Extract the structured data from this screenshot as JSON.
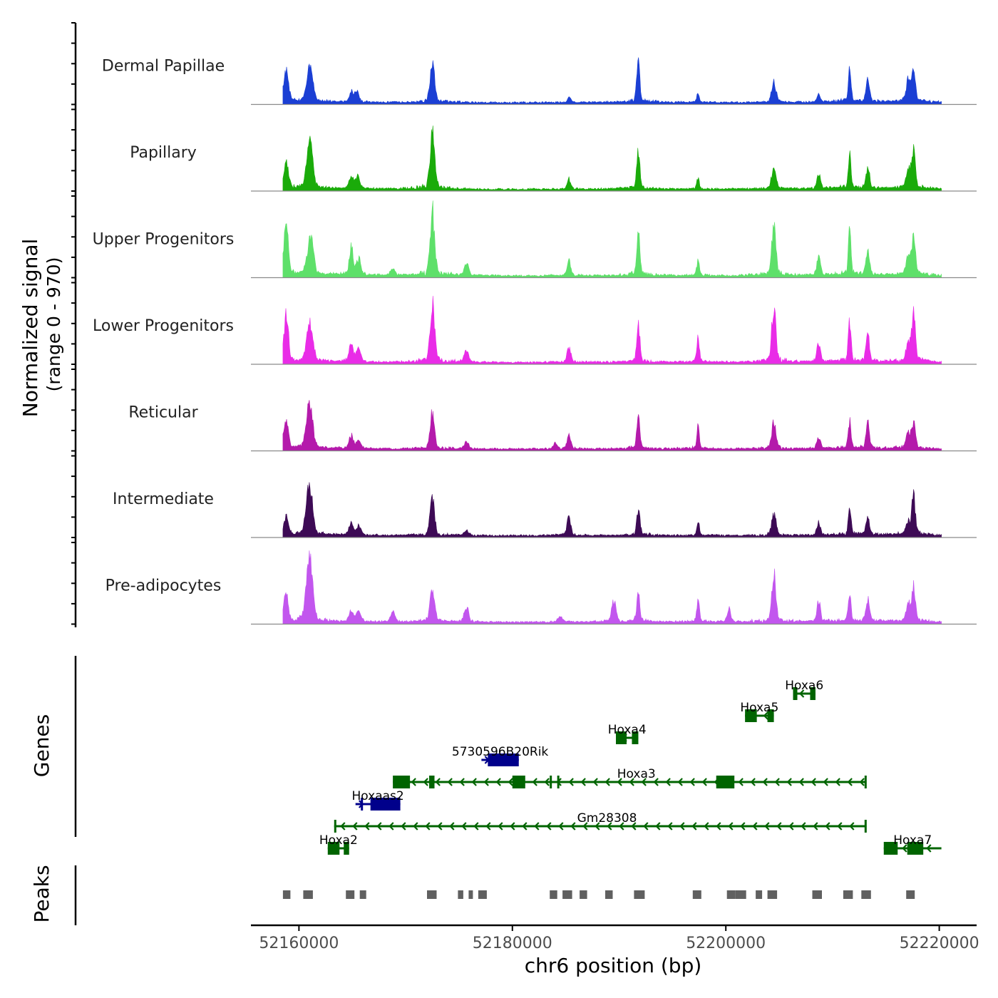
{
  "chart_data": {
    "type": "coverage-track",
    "y_axis_title_line1": "Normalized signal",
    "y_axis_title_line2": "(range 0 - 970)",
    "signal_range": [
      0,
      970
    ],
    "x_axis_title": "chr6 position (bp)",
    "x_range": [
      52155500,
      52223500
    ],
    "x_ticks": [
      52160000,
      52180000,
      52200000,
      52220000
    ],
    "x_tick_labels": [
      "52160000",
      "52180000",
      "52200000",
      "52220000"
    ],
    "data_start": 52158500,
    "data_end": 52220200,
    "tracks": [
      {
        "name": "Dermal Papillae",
        "color": "#1b3fd4",
        "peaks": [
          [
            52158800,
            0.52,
            0.55
          ],
          [
            52160900,
            0.36,
            0.6
          ],
          [
            52161200,
            0.3,
            0.5
          ],
          [
            52164900,
            0.14,
            0.5
          ],
          [
            52165400,
            0.18,
            0.5
          ],
          [
            52172500,
            0.6,
            0.5
          ],
          [
            52185300,
            0.09,
            0.4
          ],
          [
            52191800,
            0.62,
            0.35
          ],
          [
            52197400,
            0.14,
            0.3
          ],
          [
            52204500,
            0.32,
            0.5
          ],
          [
            52208700,
            0.12,
            0.4
          ],
          [
            52211600,
            0.57,
            0.3
          ],
          [
            52213300,
            0.34,
            0.4
          ],
          [
            52217100,
            0.35,
            0.5
          ],
          [
            52217600,
            0.5,
            0.4
          ]
        ]
      },
      {
        "name": "Papillary",
        "color": "#1aab0a",
        "peaks": [
          [
            52158800,
            0.4,
            0.55
          ],
          [
            52160900,
            0.57,
            0.6
          ],
          [
            52161200,
            0.35,
            0.5
          ],
          [
            52164900,
            0.18,
            0.5
          ],
          [
            52165500,
            0.2,
            0.5
          ],
          [
            52172500,
            0.9,
            0.5
          ],
          [
            52185300,
            0.16,
            0.4
          ],
          [
            52191800,
            0.62,
            0.35
          ],
          [
            52197400,
            0.16,
            0.3
          ],
          [
            52204500,
            0.34,
            0.5
          ],
          [
            52208700,
            0.24,
            0.4
          ],
          [
            52211600,
            0.58,
            0.3
          ],
          [
            52213300,
            0.32,
            0.4
          ],
          [
            52217100,
            0.3,
            0.5
          ],
          [
            52217600,
            0.62,
            0.4
          ]
        ]
      },
      {
        "name": "Upper Progenitors",
        "color": "#5ee06a",
        "peaks": [
          [
            52158800,
            0.8,
            0.5
          ],
          [
            52160900,
            0.32,
            0.6
          ],
          [
            52161200,
            0.45,
            0.5
          ],
          [
            52164900,
            0.43,
            0.45
          ],
          [
            52165600,
            0.25,
            0.5
          ],
          [
            52168800,
            0.1,
            0.5
          ],
          [
            52172500,
            1.02,
            0.5
          ],
          [
            52175700,
            0.18,
            0.5
          ],
          [
            52185300,
            0.24,
            0.4
          ],
          [
            52191800,
            0.68,
            0.35
          ],
          [
            52197400,
            0.24,
            0.3
          ],
          [
            52204500,
            0.84,
            0.45
          ],
          [
            52208700,
            0.3,
            0.4
          ],
          [
            52211600,
            0.69,
            0.3
          ],
          [
            52213300,
            0.38,
            0.4
          ],
          [
            52217100,
            0.3,
            0.5
          ],
          [
            52217600,
            0.6,
            0.4
          ]
        ]
      },
      {
        "name": "Lower Progenitors",
        "color": "#e92ce7",
        "peaks": [
          [
            52158800,
            0.72,
            0.5
          ],
          [
            52160900,
            0.46,
            0.6
          ],
          [
            52161200,
            0.3,
            0.5
          ],
          [
            52164900,
            0.28,
            0.5
          ],
          [
            52165600,
            0.2,
            0.5
          ],
          [
            52172500,
            0.9,
            0.5
          ],
          [
            52175700,
            0.18,
            0.5
          ],
          [
            52185300,
            0.25,
            0.4
          ],
          [
            52191800,
            0.58,
            0.35
          ],
          [
            52197400,
            0.38,
            0.3
          ],
          [
            52204500,
            0.88,
            0.45
          ],
          [
            52208700,
            0.3,
            0.4
          ],
          [
            52211600,
            0.66,
            0.3
          ],
          [
            52213300,
            0.44,
            0.4
          ],
          [
            52217100,
            0.3,
            0.5
          ],
          [
            52217600,
            0.8,
            0.4
          ]
        ]
      },
      {
        "name": "Reticular",
        "color": "#b41aab",
        "peaks": [
          [
            52158800,
            0.45,
            0.5
          ],
          [
            52160900,
            0.56,
            0.6
          ],
          [
            52161200,
            0.3,
            0.5
          ],
          [
            52164900,
            0.2,
            0.5
          ],
          [
            52165600,
            0.13,
            0.5
          ],
          [
            52172500,
            0.53,
            0.5
          ],
          [
            52175700,
            0.1,
            0.5
          ],
          [
            52184000,
            0.08,
            0.4
          ],
          [
            52185300,
            0.22,
            0.4
          ],
          [
            52191800,
            0.5,
            0.35
          ],
          [
            52197400,
            0.34,
            0.3
          ],
          [
            52204500,
            0.4,
            0.5
          ],
          [
            52208700,
            0.18,
            0.4
          ],
          [
            52211600,
            0.45,
            0.3
          ],
          [
            52213300,
            0.4,
            0.4
          ],
          [
            52217100,
            0.25,
            0.5
          ],
          [
            52217600,
            0.4,
            0.4
          ]
        ]
      },
      {
        "name": "Intermediate",
        "color": "#3d0a55",
        "peaks": [
          [
            52158800,
            0.3,
            0.5
          ],
          [
            52160900,
            0.72,
            0.6
          ],
          [
            52161200,
            0.28,
            0.5
          ],
          [
            52164900,
            0.2,
            0.5
          ],
          [
            52165600,
            0.15,
            0.5
          ],
          [
            52172500,
            0.6,
            0.5
          ],
          [
            52175700,
            0.08,
            0.5
          ],
          [
            52185300,
            0.3,
            0.4
          ],
          [
            52191800,
            0.46,
            0.35
          ],
          [
            52197400,
            0.22,
            0.3
          ],
          [
            52204500,
            0.34,
            0.5
          ],
          [
            52208700,
            0.2,
            0.4
          ],
          [
            52211600,
            0.5,
            0.3
          ],
          [
            52213300,
            0.28,
            0.4
          ],
          [
            52217100,
            0.2,
            0.5
          ],
          [
            52217600,
            0.6,
            0.4
          ]
        ]
      },
      {
        "name": "Pre-adipocytes",
        "color": "#c256ee",
        "peaks": [
          [
            52158800,
            0.46,
            0.5
          ],
          [
            52160900,
            0.78,
            0.65
          ],
          [
            52161200,
            0.4,
            0.5
          ],
          [
            52164900,
            0.16,
            0.5
          ],
          [
            52165600,
            0.18,
            0.5
          ],
          [
            52168800,
            0.15,
            0.5
          ],
          [
            52172500,
            0.58,
            0.5
          ],
          [
            52175700,
            0.22,
            0.5
          ],
          [
            52184500,
            0.1,
            0.5
          ],
          [
            52189500,
            0.32,
            0.5
          ],
          [
            52191800,
            0.44,
            0.35
          ],
          [
            52197400,
            0.34,
            0.3
          ],
          [
            52200300,
            0.2,
            0.4
          ],
          [
            52204500,
            0.78,
            0.45
          ],
          [
            52208700,
            0.32,
            0.4
          ],
          [
            52211600,
            0.46,
            0.3
          ],
          [
            52213300,
            0.38,
            0.4
          ],
          [
            52217100,
            0.25,
            0.5
          ],
          [
            52217600,
            0.56,
            0.4
          ]
        ]
      }
    ],
    "genes_title": "Genes",
    "genes": [
      {
        "name": "Hoxa6",
        "strand": "-",
        "color": "#006400",
        "start": 52206300,
        "end": 52208400,
        "row": 1,
        "exons": [
          [
            52206300,
            52206700
          ],
          [
            52207900,
            52208400
          ]
        ]
      },
      {
        "name": "Hoxa5",
        "strand": "-",
        "color": "#006400",
        "start": 52201800,
        "end": 52204500,
        "row": 2,
        "exons": [
          [
            52201800,
            52202900
          ],
          [
            52203900,
            52204500
          ]
        ]
      },
      {
        "name": "Hoxa4",
        "strand": "-",
        "color": "#006400",
        "start": 52189700,
        "end": 52191800,
        "row": 3,
        "exons": [
          [
            52189700,
            52190700
          ],
          [
            52191200,
            52191800
          ]
        ]
      },
      {
        "name": "5730596B20Rik",
        "strand": "+",
        "color": "#00008b",
        "start": 52177100,
        "end": 52180600,
        "row": 4,
        "exons": [
          [
            52177700,
            52180600
          ]
        ]
      },
      {
        "name": "Hoxa3",
        "strand": "-",
        "color": "#006400",
        "start": 52168800,
        "end": 52213100,
        "row": 5,
        "exons": [
          [
            52168800,
            52170400
          ],
          [
            52172200,
            52172700
          ],
          [
            52180000,
            52181200
          ],
          [
            52183500,
            52183700
          ],
          [
            52184200,
            52184400
          ],
          [
            52199100,
            52200800
          ],
          [
            52213000,
            52213100
          ]
        ]
      },
      {
        "name": "Hoxaas2",
        "strand": "+",
        "color": "#00008b",
        "start": 52165300,
        "end": 52169500,
        "row": 6,
        "exons": [
          [
            52165800,
            52166000
          ],
          [
            52166700,
            52169500
          ]
        ]
      },
      {
        "name": "Gm28308",
        "strand": "-",
        "color": "#006400",
        "start": 52163300,
        "end": 52213100,
        "row": 7,
        "exons": [
          [
            52163300,
            52163500
          ],
          [
            52213000,
            52213100
          ]
        ]
      },
      {
        "name": "Hoxa2",
        "strand": "-",
        "color": "#006400",
        "start": 52162700,
        "end": 52164700,
        "row": 8,
        "exons": [
          [
            52162700,
            52163800
          ],
          [
            52164200,
            52164700
          ]
        ]
      },
      {
        "name": "Hoxa7",
        "strand": "-",
        "color": "#006400",
        "start": 52214800,
        "end": 52220200,
        "row": 8,
        "exons": [
          [
            52214800,
            52216100
          ],
          [
            52217000,
            52218500
          ]
        ]
      }
    ],
    "peaks_title": "Peaks",
    "peaks_color": "#606060",
    "peak_intervals": [
      [
        52158500,
        52159200
      ],
      [
        52160400,
        52161300
      ],
      [
        52164400,
        52165200
      ],
      [
        52165700,
        52166300
      ],
      [
        52172000,
        52172900
      ],
      [
        52174900,
        52175400
      ],
      [
        52175900,
        52175900
      ],
      [
        52176800,
        52177600
      ],
      [
        52183500,
        52184200
      ],
      [
        52184700,
        52185600
      ],
      [
        52186300,
        52187000
      ],
      [
        52188700,
        52189400
      ],
      [
        52191400,
        52192400
      ],
      [
        52196900,
        52197700
      ],
      [
        52200100,
        52200900
      ],
      [
        52200900,
        52201900
      ],
      [
        52202800,
        52203400
      ],
      [
        52203900,
        52204800
      ],
      [
        52208100,
        52209000
      ],
      [
        52211000,
        52211900
      ],
      [
        52212700,
        52213600
      ],
      [
        52216900,
        52217700
      ]
    ]
  }
}
